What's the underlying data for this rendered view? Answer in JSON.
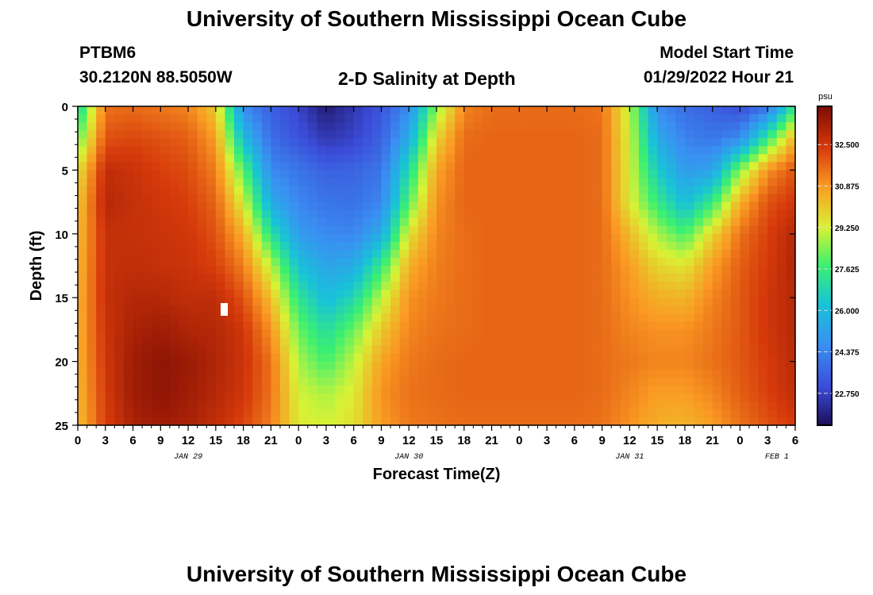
{
  "header": {
    "title": "University of Southern Mississippi Ocean Cube",
    "station": "PTBM6",
    "coords": "30.2120N  88.5050W",
    "chart_title": "2-D Salinity at Depth",
    "start_label": "Model Start Time",
    "start_value": "01/29/2022 Hour 21"
  },
  "footer": {
    "title": "University of Southern Mississippi Ocean Cube"
  },
  "chart_data": {
    "type": "heatmap",
    "title": "2-D Salinity at Depth",
    "xlabel": "Forecast Time(Z)",
    "ylabel": "Depth (ft)",
    "x_ticks": [
      "0",
      "3",
      "6",
      "9",
      "12",
      "15",
      "18",
      "21",
      "0",
      "3",
      "6",
      "9",
      "12",
      "15",
      "18",
      "21",
      "0",
      "3",
      "6",
      "9",
      "12",
      "15",
      "18",
      "21",
      "0",
      "3",
      "6"
    ],
    "date_labels": [
      {
        "label": "JAN 29",
        "x_hours": 12
      },
      {
        "label": "JAN 30",
        "x_hours": 36
      },
      {
        "label": "JAN 31",
        "x_hours": 60
      },
      {
        "label": "FEB 1",
        "x_hours": 76
      }
    ],
    "xlim_hours": [
      0,
      78
    ],
    "y_ticks": [
      0,
      5,
      10,
      15,
      20,
      25
    ],
    "ylim": [
      0,
      25
    ],
    "colorbar": {
      "unit": "psu",
      "ticks": [
        "32.500",
        "30.875",
        "29.250",
        "27.625",
        "26.000",
        "24.375",
        "22.750"
      ],
      "range": [
        21.5,
        34.0
      ]
    },
    "x_hours": [
      0,
      3,
      6,
      9,
      12,
      15,
      18,
      21,
      24,
      27,
      30,
      33,
      36,
      39,
      42,
      45,
      48,
      51,
      54,
      57,
      60,
      63,
      66,
      69,
      72,
      75,
      78
    ],
    "depths_ft": [
      0,
      2.5,
      5,
      7.5,
      10,
      12.5,
      15,
      17.5,
      20,
      22.5,
      25
    ],
    "salinity_psu": [
      [
        26.6,
        31.5,
        31.6,
        31.4,
        31.2,
        30.0,
        24.5,
        23.5,
        22.8,
        21.8,
        22.5,
        23.2,
        24.5,
        28.5,
        31.2,
        31.6,
        31.6,
        31.6,
        31.6,
        31.5,
        29.0,
        24.5,
        23.8,
        23.5,
        23.0,
        23.8,
        27.5
      ],
      [
        28.0,
        32.0,
        32.2,
        32.0,
        31.8,
        30.8,
        26.0,
        23.8,
        23.2,
        22.5,
        22.8,
        23.5,
        25.5,
        29.8,
        31.6,
        31.7,
        31.7,
        31.7,
        31.7,
        31.6,
        29.2,
        25.5,
        24.3,
        24.0,
        24.5,
        27.5,
        30.5
      ],
      [
        29.5,
        32.8,
        32.6,
        32.3,
        32.1,
        31.3,
        28.0,
        24.5,
        24.0,
        23.5,
        23.6,
        24.0,
        27.0,
        30.7,
        31.7,
        31.7,
        31.7,
        31.7,
        31.7,
        31.6,
        29.3,
        26.5,
        25.0,
        25.2,
        28.5,
        31.0,
        32.0
      ],
      [
        30.0,
        33.0,
        32.7,
        32.5,
        32.3,
        31.7,
        29.3,
        25.5,
        24.4,
        24.0,
        23.9,
        24.4,
        28.0,
        31.0,
        31.7,
        31.7,
        31.7,
        31.7,
        31.7,
        31.6,
        29.4,
        27.5,
        26.0,
        27.5,
        30.5,
        32.0,
        32.5
      ],
      [
        30.2,
        32.7,
        32.7,
        32.6,
        32.5,
        32.0,
        30.5,
        27.2,
        25.0,
        24.5,
        24.4,
        25.5,
        29.5,
        31.2,
        31.6,
        31.7,
        31.7,
        31.7,
        31.7,
        31.6,
        30.3,
        28.8,
        27.8,
        29.8,
        31.5,
        32.3,
        33.0
      ],
      [
        30.3,
        32.7,
        32.8,
        32.7,
        32.6,
        32.3,
        31.3,
        29.0,
        26.2,
        25.3,
        25.5,
        27.5,
        30.5,
        31.3,
        31.6,
        31.7,
        31.7,
        31.7,
        31.7,
        31.6,
        30.8,
        29.8,
        29.5,
        30.8,
        31.8,
        32.4,
        33.1
      ],
      [
        30.4,
        32.7,
        33.0,
        33.0,
        32.8,
        32.8,
        32.0,
        30.2,
        27.3,
        26.0,
        26.8,
        29.0,
        31.0,
        31.4,
        31.6,
        31.7,
        31.7,
        31.7,
        31.7,
        31.6,
        31.0,
        30.5,
        30.4,
        31.2,
        31.9,
        32.5,
        33.0
      ],
      [
        30.4,
        32.6,
        33.2,
        33.4,
        33.1,
        33.0,
        32.5,
        31.0,
        28.2,
        27.0,
        28.2,
        30.0,
        31.2,
        31.5,
        31.6,
        31.7,
        31.7,
        31.7,
        31.7,
        31.6,
        31.2,
        31.0,
        31.0,
        31.4,
        31.9,
        32.5,
        33.0
      ],
      [
        30.4,
        32.5,
        33.4,
        33.7,
        33.5,
        33.1,
        32.6,
        31.5,
        28.8,
        27.8,
        29.0,
        30.7,
        31.4,
        31.6,
        31.7,
        31.7,
        31.7,
        31.7,
        31.7,
        31.6,
        31.4,
        31.2,
        31.2,
        31.5,
        31.9,
        32.4,
        32.9
      ],
      [
        30.3,
        32.4,
        33.4,
        33.7,
        33.4,
        33.0,
        32.5,
        31.5,
        29.2,
        28.8,
        29.4,
        31.0,
        31.5,
        31.6,
        31.7,
        31.7,
        31.7,
        31.7,
        31.7,
        31.6,
        31.2,
        30.8,
        30.8,
        31.2,
        31.8,
        32.3,
        32.8
      ],
      [
        30.2,
        32.3,
        33.2,
        33.4,
        33.2,
        32.8,
        32.2,
        31.3,
        29.4,
        29.2,
        29.6,
        30.8,
        31.4,
        31.5,
        31.6,
        31.6,
        31.6,
        31.6,
        31.6,
        31.5,
        31.0,
        30.5,
        30.4,
        30.8,
        31.5,
        32.0,
        32.4
      ]
    ]
  }
}
